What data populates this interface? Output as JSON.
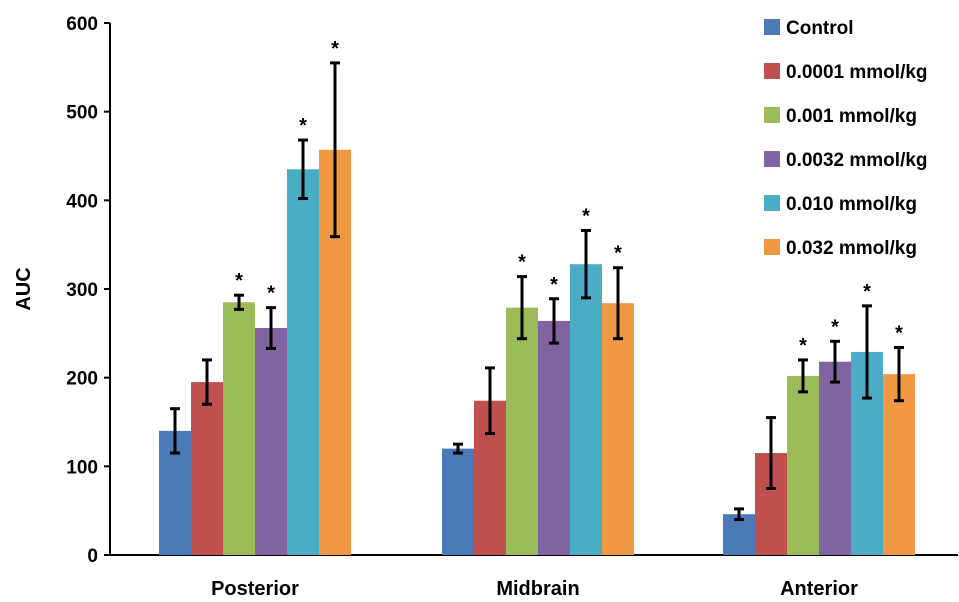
{
  "chart_data": {
    "type": "bar",
    "title": "",
    "xlabel": "",
    "ylabel": "AUC",
    "ylim": [
      0,
      600
    ],
    "yticks": [
      0,
      100,
      200,
      300,
      400,
      500,
      600
    ],
    "grid": false,
    "legend_position": "top-right",
    "categories": [
      "Posterior",
      "Midbrain",
      "Anterior"
    ],
    "series": [
      {
        "name": "Control",
        "color": "#4a7ab8",
        "values": [
          140,
          120,
          46
        ],
        "errors": [
          25,
          5,
          6
        ],
        "significant": [
          false,
          false,
          false
        ]
      },
      {
        "name": "0.0001 mmol/kg",
        "color": "#c0504d",
        "values": [
          195,
          174,
          115
        ],
        "errors": [
          25,
          37,
          40
        ],
        "significant": [
          false,
          false,
          false
        ]
      },
      {
        "name": "0.001 mmol/kg",
        "color": "#9bbb59",
        "values": [
          285,
          279,
          202
        ],
        "errors": [
          8,
          35,
          18
        ],
        "significant": [
          true,
          true,
          true
        ]
      },
      {
        "name": "0.0032 mmol/kg",
        "color": "#8064a2",
        "values": [
          256,
          264,
          218
        ],
        "errors": [
          23,
          25,
          23
        ],
        "significant": [
          true,
          true,
          true
        ]
      },
      {
        "name": "0.010 mmol/kg",
        "color": "#4bacc6",
        "values": [
          435,
          328,
          229
        ],
        "errors": [
          33,
          38,
          52
        ],
        "significant": [
          true,
          true,
          true
        ]
      },
      {
        "name": "0.032 mmol/kg",
        "color": "#f09842",
        "values": [
          457,
          284,
          204
        ],
        "errors": [
          98,
          40,
          30
        ],
        "significant": [
          true,
          true,
          true
        ]
      }
    ],
    "annotation_symbol": "*"
  }
}
